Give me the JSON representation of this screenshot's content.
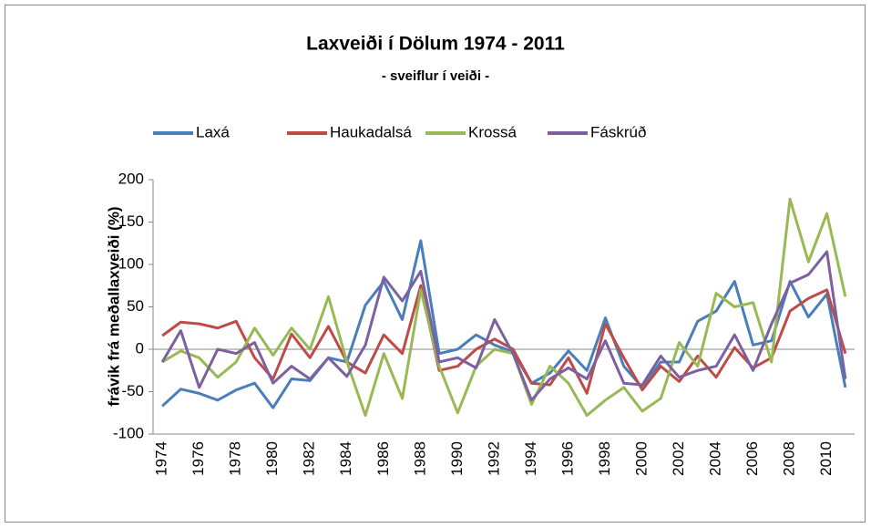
{
  "chart_data": {
    "type": "line",
    "title": "Laxveiði í Dölum 1974 - 2011",
    "subtitle": "- sveiflur í veiði -",
    "y_label": "frávik frá meðallaxveiði (%)",
    "categories": [
      "1974",
      null,
      "1976",
      null,
      "1978",
      null,
      "1980",
      null,
      "1982",
      null,
      "1984",
      null,
      "1986",
      null,
      "1988",
      null,
      "1990",
      null,
      "1992",
      null,
      "1994",
      null,
      "1996",
      null,
      "1998",
      null,
      "2000",
      null,
      "2002",
      null,
      "2004",
      null,
      "2006",
      null,
      "2008",
      null,
      "2010",
      null
    ],
    "series": [
      {
        "name": "Laxá",
        "color": "#4a7ebb",
        "values": [
          -67,
          -47,
          -52,
          -60,
          -48,
          -40,
          -69,
          -35,
          -37,
          -10,
          -15,
          52,
          80,
          35,
          128,
          -5,
          0,
          17,
          5,
          -3,
          -40,
          -28,
          -2,
          -25,
          37,
          -20,
          -45,
          -15,
          -15,
          33,
          45,
          80,
          5,
          10,
          80,
          38,
          65,
          -45
        ]
      },
      {
        "name": "Haukadalsá",
        "color": "#be4b48",
        "values": [
          16,
          32,
          30,
          25,
          33,
          -10,
          -35,
          18,
          -10,
          27,
          -15,
          -28,
          17,
          -5,
          75,
          -25,
          -20,
          0,
          12,
          0,
          -40,
          -42,
          -10,
          -52,
          30,
          -10,
          -48,
          -20,
          -38,
          -8,
          -33,
          2,
          -22,
          -10,
          45,
          60,
          70,
          -5
        ]
      },
      {
        "name": "Krossá",
        "color": "#98b954",
        "values": [
          -15,
          -2,
          -10,
          -33,
          -15,
          25,
          -7,
          25,
          0,
          62,
          -15,
          -78,
          -5,
          -58,
          70,
          -20,
          -75,
          -20,
          0,
          -5,
          -65,
          -20,
          -40,
          -78,
          -60,
          -45,
          -73,
          -58,
          8,
          -20,
          66,
          50,
          55,
          -15,
          177,
          103,
          160,
          62
        ]
      },
      {
        "name": "Fáskrúð",
        "color": "#7d60a0",
        "values": [
          -15,
          22,
          -45,
          0,
          -5,
          8,
          -40,
          -20,
          -35,
          -10,
          -32,
          5,
          85,
          57,
          92,
          -15,
          -10,
          -22,
          35,
          -5,
          -60,
          -35,
          -22,
          -35,
          10,
          -40,
          -42,
          -8,
          -33,
          -25,
          -20,
          17,
          -25,
          30,
          78,
          88,
          115,
          -35
        ]
      }
    ],
    "ylim": [
      -100,
      200
    ],
    "yticks": [
      -100,
      -50,
      0,
      50,
      100,
      150,
      200
    ],
    "grid": false,
    "legend": "top"
  }
}
